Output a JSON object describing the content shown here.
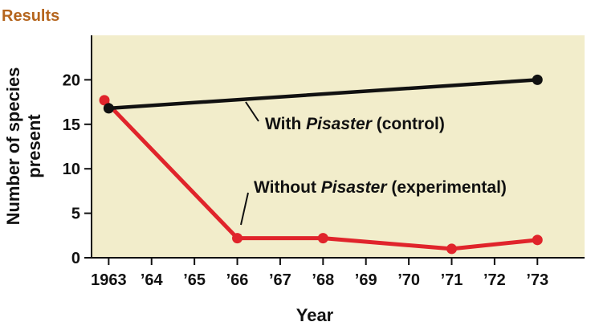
{
  "header": {
    "label": "Results",
    "color": "#b5651d"
  },
  "chart_data": {
    "type": "line",
    "title": "",
    "xlabel": "Year",
    "ylabel": "Number of species present",
    "ylim": [
      0,
      25
    ],
    "yticks": [
      0,
      5,
      10,
      15,
      20
    ],
    "xlim": [
      1962.6,
      1974.1
    ],
    "xtick_values": [
      1963,
      1964,
      1965,
      1966,
      1967,
      1968,
      1969,
      1970,
      1971,
      1972,
      1973
    ],
    "xtick_labels": [
      "1963",
      "’64",
      "’65",
      "’66",
      "’67",
      "’68",
      "’69",
      "’70",
      "’71",
      "’72",
      "’73"
    ],
    "grid": false,
    "plot_background": "#f2edcb",
    "series": [
      {
        "name": "With Pisaster (control)",
        "name_plain": "With ",
        "name_italic": "Pisaster",
        "name_suffix": " (control)",
        "color": "#111111",
        "points": [
          {
            "x": 1963,
            "y": 16.8
          },
          {
            "x": 1973,
            "y": 20
          }
        ]
      },
      {
        "name": "Without Pisaster (experimental)",
        "name_plain": "Without ",
        "name_italic": "Pisaster",
        "name_suffix": " (experimental)",
        "color": "#e0242b",
        "points": [
          {
            "x": 1962.9,
            "y": 17.7
          },
          {
            "x": 1966,
            "y": 2.2
          },
          {
            "x": 1968,
            "y": 2.2
          },
          {
            "x": 1971,
            "y": 1
          },
          {
            "x": 1973,
            "y": 2
          }
        ]
      }
    ]
  }
}
